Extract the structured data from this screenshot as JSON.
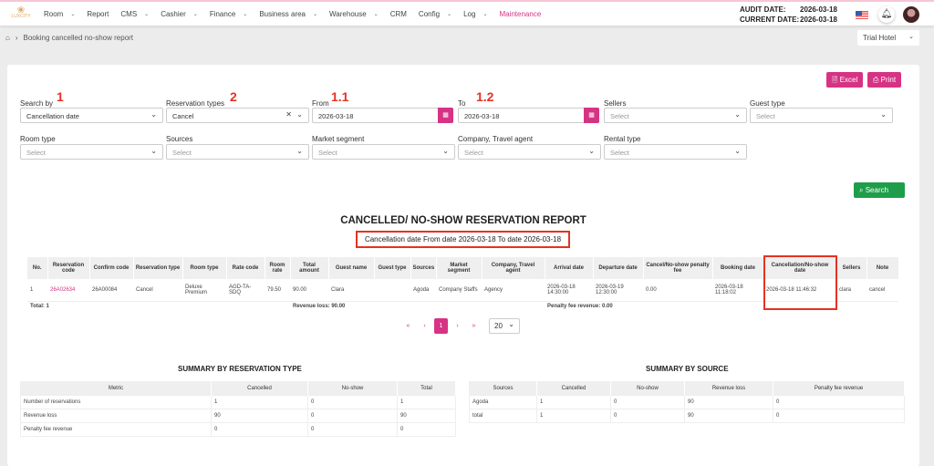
{
  "nav": {
    "logo": "LUXCITY",
    "menu": [
      {
        "label": "Room",
        "dd": true
      },
      {
        "label": "Report",
        "dd": false
      },
      {
        "label": "CMS",
        "dd": true
      },
      {
        "label": "Cashier",
        "dd": true
      },
      {
        "label": "Finance",
        "dd": true
      },
      {
        "label": "Business area",
        "dd": true
      },
      {
        "label": "Warehouse",
        "dd": true
      },
      {
        "label": "CRM",
        "dd": false
      },
      {
        "label": "Config",
        "dd": true
      },
      {
        "label": "Log",
        "dd": true
      },
      {
        "label": "Maintenance",
        "dd": false
      }
    ],
    "audit_label": "AUDIT DATE:",
    "audit_date": "2026-03-18",
    "current_label": "CURRENT DATE:",
    "current_date": "2026-03-18"
  },
  "breadcrumb": {
    "page": "Booking cancelled no-show report"
  },
  "hotel": "Trial Hotel",
  "buttons": {
    "excel": "Excel",
    "print": "Print",
    "search": "Search"
  },
  "filters": {
    "search_by": {
      "label": "Search by",
      "value": "Cancellation date"
    },
    "reservation_types": {
      "label": "Reservation types",
      "value": "Cancel"
    },
    "from": {
      "label": "From",
      "value": "2026-03-18"
    },
    "to": {
      "label": "To",
      "value": "2026-03-18"
    },
    "sellers": {
      "label": "Sellers",
      "placeholder": "Select"
    },
    "guest_type": {
      "label": "Guest type",
      "placeholder": "Select"
    },
    "room_type": {
      "label": "Room type",
      "placeholder": "Select"
    },
    "sources": {
      "label": "Sources",
      "placeholder": "Select"
    },
    "market_segment": {
      "label": "Market segment",
      "placeholder": "Select"
    },
    "company": {
      "label": "Company, Travel agent",
      "placeholder": "Select"
    },
    "rental_type": {
      "label": "Rental type",
      "placeholder": "Select"
    }
  },
  "annotations": [
    "1",
    "2",
    "1.1",
    "1.2"
  ],
  "report": {
    "title": "CANCELLED/ NO-SHOW RESERVATION REPORT",
    "subtitle": "Cancellation date From date 2026-03-18   To date 2026-03-18",
    "columns": [
      "No.",
      "Reservation code",
      "Confirm code",
      "Reservation type",
      "Room type",
      "Rate code",
      "Room rate",
      "Total amount",
      "Guest name",
      "Guest type",
      "Sources",
      "Market segment",
      "Company, Travel agent",
      "Arrival date",
      "Departure date",
      "Cancel/No-show penalty fee",
      "Booking date",
      "Cancellation/No-show date",
      "Sellers",
      "Note"
    ],
    "rows": [
      [
        "1",
        "26A02634",
        "26A00084",
        "Cancel",
        "Deluxe Premium",
        "AGD-TA-SDQ",
        "79.50",
        "90.00",
        "Clara",
        "",
        "Agoda",
        "Company Staffs",
        "Agency",
        "2026-03-18 14:30:00",
        "2026-03-19 12:30:00",
        "0.00",
        "2026-03-18 11:18:02",
        "2026-03-18 11:46:32",
        "clara",
        "cancel"
      ]
    ],
    "total": "Total: 1",
    "revenue_loss": "Revenue loss: 90.00",
    "penalty_revenue": "Penalty fee revenue: 0.00"
  },
  "pagination": {
    "first": "«",
    "prev": "‹",
    "current": "1",
    "next": "›",
    "last": "»",
    "page_size": "20"
  },
  "summary_type": {
    "title": "SUMMARY BY RESERVATION TYPE",
    "columns": [
      "Metric",
      "Cancelled",
      "No-show",
      "Total"
    ],
    "rows": [
      [
        "Number of reservations",
        "1",
        "0",
        "1"
      ],
      [
        "Revenue loss",
        "90",
        "0",
        "90"
      ],
      [
        "Penalty fee revenue",
        "0",
        "0",
        "0"
      ]
    ]
  },
  "summary_source": {
    "title": "SUMMARY BY SOURCE",
    "columns": [
      "Sources",
      "Cancelled",
      "No-show",
      "Revenue loss",
      "Penalty fee revenue"
    ],
    "rows": [
      [
        "Agoda",
        "1",
        "0",
        "90",
        "0"
      ],
      [
        "total",
        "1",
        "0",
        "90",
        "0"
      ]
    ]
  }
}
